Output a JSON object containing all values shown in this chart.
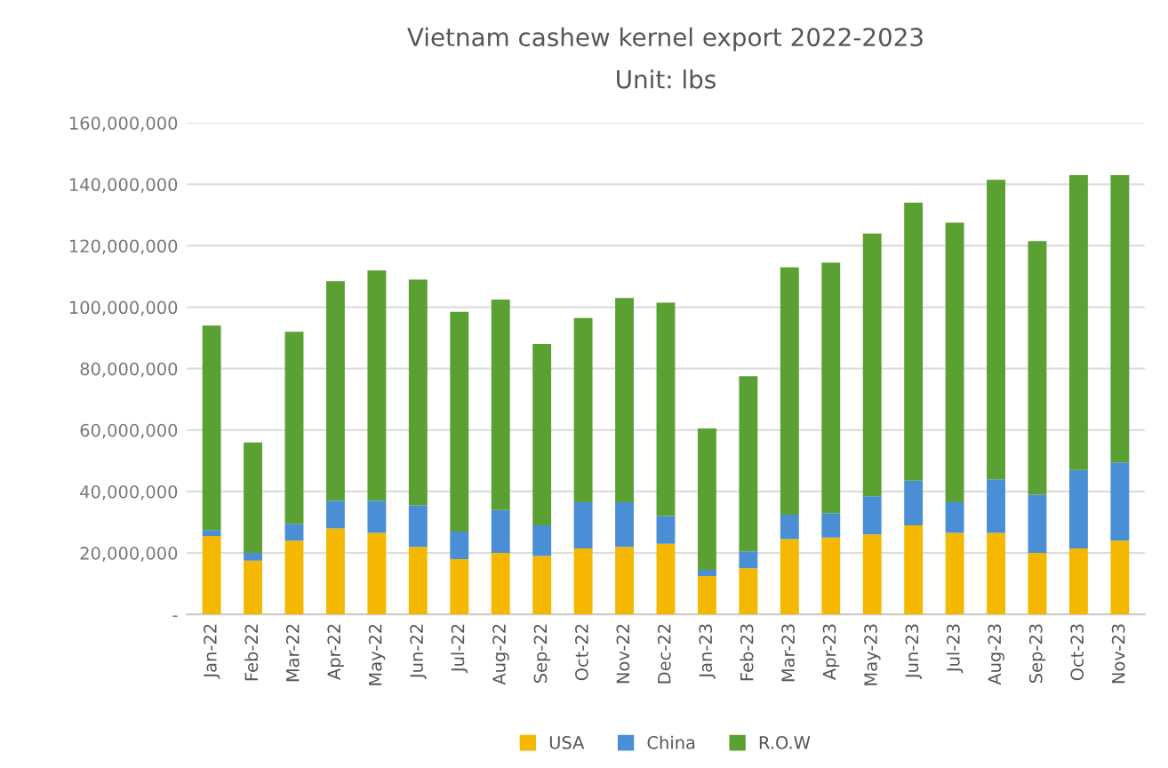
{
  "chart_data": {
    "type": "bar",
    "title": "Vietnam cashew kernel export 2022-2023",
    "subtitle": "Unit: lbs",
    "stacked": true,
    "categories": [
      "Jan-22",
      "Feb-22",
      "Mar-22",
      "Apr-22",
      "May-22",
      "Jun-22",
      "Jul-22",
      "Aug-22",
      "Sep-22",
      "Oct-22",
      "Nov-22",
      "Dec-22",
      "Jan-23",
      "Feb-23",
      "Mar-23",
      "Apr-23",
      "May-23",
      "Jun-23",
      "Jul-23",
      "Aug-23",
      "Sep-23",
      "Oct-23",
      "Nov-23"
    ],
    "series": [
      {
        "name": "USA",
        "color": "#f5b800",
        "values": [
          25500000,
          17500000,
          24000000,
          28000000,
          26500000,
          22000000,
          18000000,
          20000000,
          19000000,
          21500000,
          22000000,
          23000000,
          12500000,
          15000000,
          24500000,
          25000000,
          26000000,
          29000000,
          26500000,
          26500000,
          20000000,
          21500000,
          24000000
        ]
      },
      {
        "name": "China",
        "color": "#4a8fd6",
        "values": [
          2000000,
          2500000,
          5500000,
          9000000,
          10500000,
          13500000,
          9000000,
          14000000,
          10000000,
          15000000,
          14500000,
          9000000,
          2000000,
          5500000,
          8000000,
          8000000,
          12500000,
          14500000,
          10000000,
          17500000,
          19000000,
          25500000,
          25500000
        ]
      },
      {
        "name": "R.O.W",
        "color": "#5ba032",
        "values": [
          66500000,
          36000000,
          62500000,
          71500000,
          75000000,
          73500000,
          71500000,
          68500000,
          59000000,
          60000000,
          66500000,
          69500000,
          46000000,
          57000000,
          80500000,
          81500000,
          85500000,
          90500000,
          91000000,
          97500000,
          82500000,
          96000000,
          93500000
        ]
      }
    ],
    "ylim": [
      0,
      160000000
    ],
    "yticks": [
      {
        "value": 0,
        "label": "-"
      },
      {
        "value": 20000000,
        "label": "20,000,000"
      },
      {
        "value": 40000000,
        "label": "40,000,000"
      },
      {
        "value": 60000000,
        "label": "60,000,000"
      },
      {
        "value": 80000000,
        "label": "80,000,000"
      },
      {
        "value": 100000000,
        "label": "100,000,000"
      },
      {
        "value": 120000000,
        "label": "120,000,000"
      },
      {
        "value": 140000000,
        "label": "140,000,000"
      },
      {
        "value": 160000000,
        "label": "160,000,000"
      }
    ],
    "grid": "y",
    "legend": "bottom"
  }
}
